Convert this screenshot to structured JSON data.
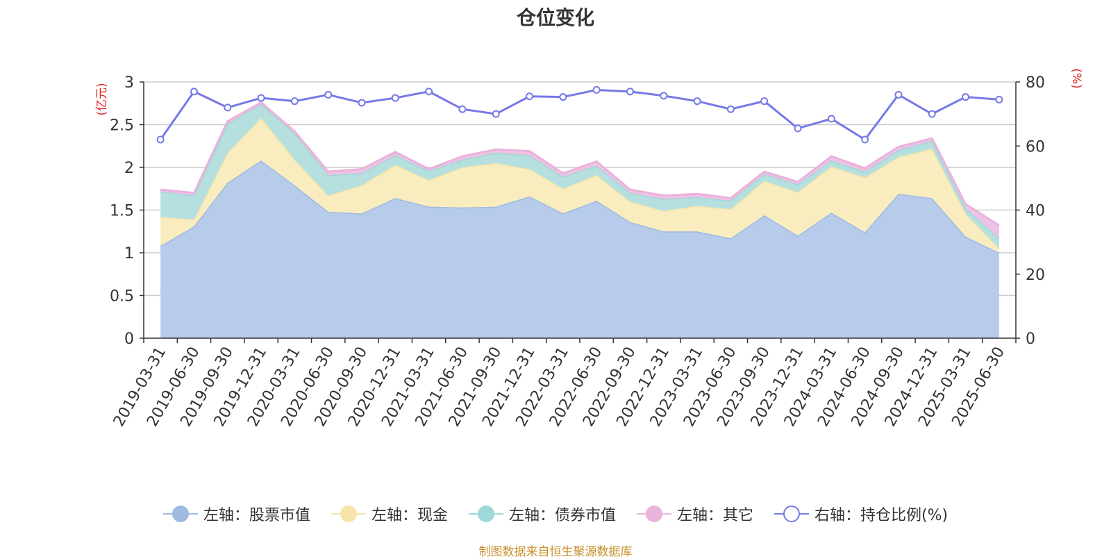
{
  "chart_data": {
    "type": "area",
    "title": "仓位变化",
    "x": [
      "2019-03-31",
      "2019-06-30",
      "2019-09-30",
      "2019-12-31",
      "2020-03-31",
      "2020-06-30",
      "2020-09-30",
      "2020-12-31",
      "2021-03-31",
      "2021-06-30",
      "2021-09-30",
      "2021-12-31",
      "2022-03-31",
      "2022-06-30",
      "2022-09-30",
      "2022-12-31",
      "2023-03-31",
      "2023-06-30",
      "2023-09-30",
      "2023-12-31",
      "2024-03-31",
      "2024-06-30",
      "2024-09-30",
      "2024-12-31",
      "2025-03-31",
      "2025-06-30"
    ],
    "y_left": {
      "label": "(亿元)",
      "ylim": [
        0,
        3
      ],
      "ticks": [
        "0",
        "0.5",
        "1",
        "1.5",
        "2",
        "2.5",
        "3"
      ]
    },
    "y_right": {
      "label": "(%)",
      "ylim": [
        0,
        80
      ],
      "ticks": [
        "0",
        "20",
        "40",
        "60",
        "80"
      ]
    },
    "grid": true,
    "legend_position": "bottom",
    "stacked_series": [
      {
        "name": "左轴：股票市值",
        "color": "#9fb9e0",
        "fill": "#b7cceb",
        "values": [
          1.08,
          1.31,
          1.82,
          2.08,
          1.79,
          1.48,
          1.46,
          1.64,
          1.54,
          1.53,
          1.54,
          1.66,
          1.46,
          1.61,
          1.36,
          1.25,
          1.25,
          1.17,
          1.44,
          1.2,
          1.47,
          1.24,
          1.69,
          1.64,
          1.19,
          1.0
        ]
      },
      {
        "name": "左轴：现金",
        "color": "#f5e5a8",
        "fill": "#f9edc0",
        "values": [
          0.34,
          0.08,
          0.35,
          0.5,
          0.3,
          0.19,
          0.33,
          0.39,
          0.31,
          0.47,
          0.51,
          0.32,
          0.29,
          0.3,
          0.24,
          0.24,
          0.3,
          0.34,
          0.4,
          0.51,
          0.54,
          0.64,
          0.43,
          0.58,
          0.27,
          0.05
        ]
      },
      {
        "name": "左轴：债券市值",
        "color": "#9fd8d8",
        "fill": "#b5e0df",
        "values": [
          0.3,
          0.28,
          0.34,
          0.16,
          0.31,
          0.24,
          0.14,
          0.11,
          0.11,
          0.09,
          0.12,
          0.16,
          0.14,
          0.11,
          0.1,
          0.14,
          0.1,
          0.1,
          0.08,
          0.09,
          0.07,
          0.07,
          0.08,
          0.09,
          0.06,
          0.12
        ]
      },
      {
        "name": "左轴：其它",
        "color": "#e9b3dc",
        "fill": "#eec2e4",
        "values": [
          0.02,
          0.03,
          0.03,
          0.02,
          0.02,
          0.04,
          0.05,
          0.04,
          0.02,
          0.04,
          0.04,
          0.05,
          0.04,
          0.05,
          0.04,
          0.04,
          0.04,
          0.03,
          0.03,
          0.03,
          0.05,
          0.04,
          0.04,
          0.03,
          0.05,
          0.15
        ]
      }
    ],
    "line_series": {
      "name": "右轴：持仓比例(%)",
      "axis": "right",
      "color": "#7579e7",
      "values": [
        62,
        77,
        72,
        75,
        74,
        76,
        73.5,
        75,
        77,
        71.5,
        70,
        75.5,
        75.3,
        77.5,
        77,
        75.7,
        74,
        71.5,
        74,
        65.5,
        68.5,
        62,
        76,
        70,
        75.3,
        74.5
      ]
    },
    "source_note": "制图数据来自恒生聚源数据库"
  }
}
